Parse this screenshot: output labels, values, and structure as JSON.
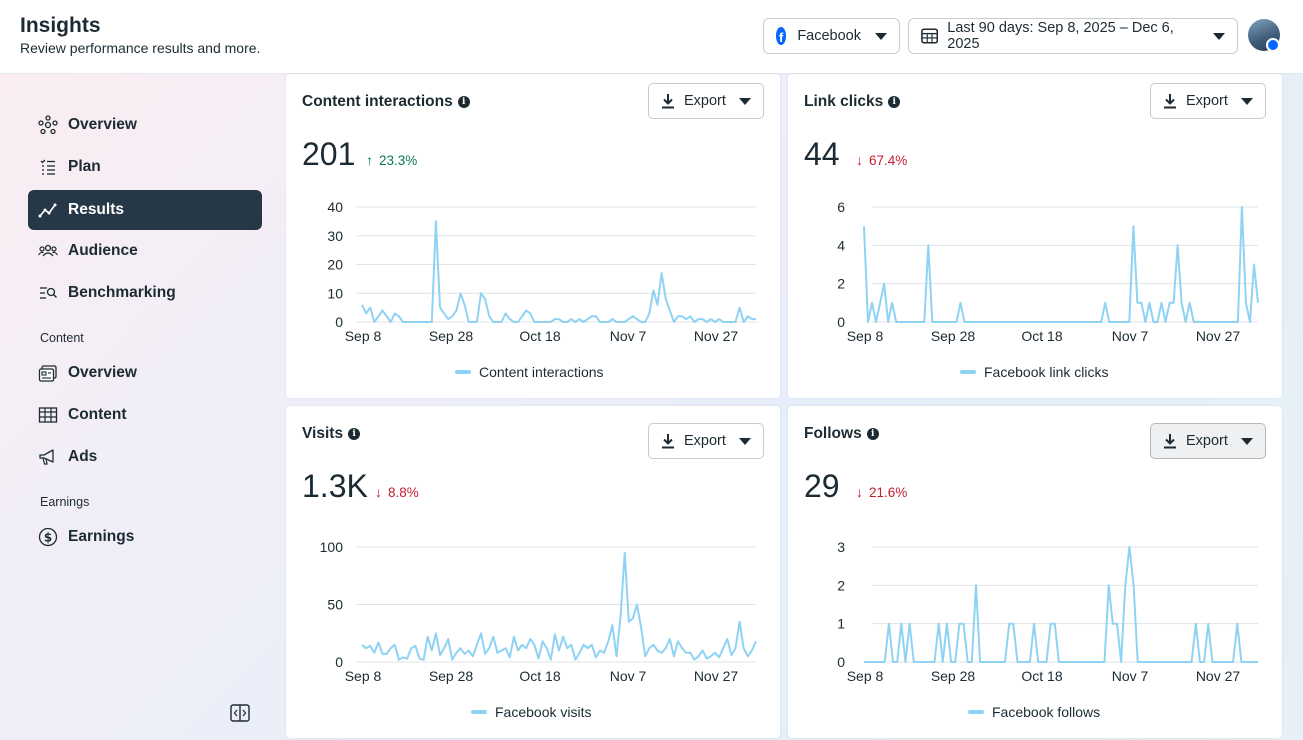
{
  "header": {
    "title": "Insights",
    "subtitle": "Review performance results and more.",
    "platform_label": "Facebook",
    "date_range_label": "Last 90 days: Sep 8, 2025 – Dec 6, 2025"
  },
  "sidebar": {
    "items_top": [
      {
        "label": "Overview",
        "icon": "network-icon"
      },
      {
        "label": "Plan",
        "icon": "list-icon"
      },
      {
        "label": "Results",
        "icon": "trend-icon"
      },
      {
        "label": "Audience",
        "icon": "people-icon"
      },
      {
        "label": "Benchmarking",
        "icon": "compare-icon"
      }
    ],
    "content_section_label": "Content",
    "items_content": [
      {
        "label": "Overview",
        "icon": "content-overview-icon"
      },
      {
        "label": "Content",
        "icon": "table-icon"
      },
      {
        "label": "Ads",
        "icon": "megaphone-icon"
      }
    ],
    "earnings_section_label": "Earnings",
    "items_earnings": [
      {
        "label": "Earnings",
        "icon": "dollar-icon"
      }
    ]
  },
  "cards": [
    {
      "title": "Content interactions",
      "export_label": "Export",
      "value": "201",
      "change": "23.3%",
      "direction": "up",
      "legend": "Content interactions"
    },
    {
      "title": "Link clicks",
      "export_label": "Export",
      "value": "44",
      "change": "67.4%",
      "direction": "down",
      "legend": "Facebook link clicks"
    },
    {
      "title": "Visits",
      "export_label": "Export",
      "value": "1.3K",
      "change": "8.8%",
      "direction": "down",
      "legend": "Facebook visits"
    },
    {
      "title": "Follows",
      "export_label": "Export",
      "value": "29",
      "change": "21.6%",
      "direction": "down",
      "legend": "Facebook follows"
    }
  ],
  "colors": {
    "line": "#8fd3f4",
    "grid": "#dfe3e7",
    "up": "#0b7a4b",
    "down": "#c41d2f",
    "active_nav": "#263847"
  },
  "chart_data": [
    {
      "type": "line",
      "title": "Content interactions",
      "x_tick_labels": [
        "Sep 8",
        "Sep 28",
        "Oct 18",
        "Nov 7",
        "Nov 27"
      ],
      "ylim": [
        0,
        40
      ],
      "y_ticks": [
        0,
        10,
        20,
        30,
        40
      ],
      "series": [
        {
          "name": "Content interactions",
          "values": [
            6,
            3,
            5,
            0,
            2,
            4,
            2,
            0,
            3,
            2,
            0,
            0,
            0,
            0,
            0,
            0,
            0,
            0,
            35,
            5,
            3,
            1,
            2,
            4,
            10,
            6,
            0,
            0,
            0,
            10,
            8,
            2,
            0,
            0,
            0,
            3,
            1,
            0,
            0,
            2,
            4,
            3,
            0,
            0,
            0,
            0,
            0,
            1,
            1,
            0,
            0,
            1,
            0,
            1,
            0,
            1,
            2,
            2,
            0,
            0,
            0,
            1,
            0,
            0,
            0,
            1,
            2,
            1,
            0,
            0,
            3,
            11,
            6,
            17,
            8,
            4,
            0,
            2,
            2,
            1,
            2,
            0,
            1,
            1,
            0,
            1,
            0,
            1,
            0,
            0,
            0,
            0,
            5,
            0,
            2,
            1,
            1
          ]
        }
      ]
    },
    {
      "type": "line",
      "title": "Link clicks",
      "x_tick_labels": [
        "Sep 8",
        "Sep 28",
        "Oct 18",
        "Nov 7",
        "Nov 27"
      ],
      "ylim": [
        0,
        6
      ],
      "y_ticks": [
        0,
        2,
        4,
        6
      ],
      "series": [
        {
          "name": "Facebook link clicks",
          "values": [
            5,
            0,
            1,
            0,
            1,
            2,
            0,
            1,
            0,
            0,
            0,
            0,
            0,
            0,
            0,
            0,
            4,
            0,
            0,
            0,
            0,
            0,
            0,
            0,
            1,
            0,
            0,
            0,
            0,
            0,
            0,
            0,
            0,
            0,
            0,
            0,
            0,
            0,
            0,
            0,
            0,
            0,
            0,
            0,
            0,
            0,
            0,
            0,
            0,
            0,
            0,
            0,
            0,
            0,
            0,
            0,
            0,
            0,
            0,
            0,
            1,
            0,
            0,
            0,
            0,
            0,
            0,
            5,
            1,
            1,
            0,
            1,
            0,
            0,
            1,
            0,
            1,
            1,
            4,
            1,
            0,
            1,
            0,
            0,
            0,
            0,
            0,
            0,
            0,
            0,
            0,
            0,
            0,
            0,
            6,
            1,
            0,
            3,
            1
          ]
        }
      ]
    },
    {
      "type": "line",
      "title": "Visits",
      "x_tick_labels": [
        "Sep 8",
        "Sep 28",
        "Oct 18",
        "Nov 7",
        "Nov 27"
      ],
      "ylim": [
        0,
        100
      ],
      "y_ticks": [
        0,
        50,
        100
      ],
      "series": [
        {
          "name": "Facebook visits",
          "values": [
            15,
            12,
            14,
            8,
            17,
            7,
            7,
            12,
            15,
            2,
            4,
            3,
            12,
            14,
            3,
            2,
            22,
            10,
            25,
            6,
            12,
            20,
            2,
            8,
            12,
            7,
            10,
            5,
            15,
            25,
            7,
            12,
            22,
            8,
            10,
            12,
            4,
            22,
            10,
            15,
            12,
            20,
            15,
            3,
            18,
            12,
            2,
            24,
            10,
            22,
            12,
            15,
            2,
            8,
            15,
            12,
            15,
            4,
            10,
            8,
            18,
            32,
            5,
            40,
            95,
            35,
            38,
            50,
            30,
            5,
            12,
            15,
            10,
            8,
            12,
            20,
            5,
            18,
            12,
            8,
            8,
            2,
            5,
            10,
            3,
            5,
            8,
            4,
            12,
            20,
            6,
            12,
            35,
            12,
            5,
            10,
            18
          ]
        }
      ]
    },
    {
      "type": "line",
      "title": "Follows",
      "x_tick_labels": [
        "Sep 8",
        "Sep 28",
        "Oct 18",
        "Nov 7",
        "Nov 27"
      ],
      "ylim": [
        0,
        3
      ],
      "y_ticks": [
        0,
        1,
        2,
        3
      ],
      "series": [
        {
          "name": "Facebook follows",
          "values": [
            0,
            0,
            0,
            0,
            0,
            0,
            1,
            0,
            0,
            1,
            0,
            1,
            0,
            0,
            0,
            0,
            0,
            0,
            1,
            0,
            1,
            0,
            0,
            1,
            1,
            0,
            0,
            2,
            0,
            0,
            0,
            0,
            0,
            0,
            0,
            1,
            1,
            0,
            0,
            0,
            0,
            1,
            0,
            0,
            0,
            1,
            1,
            0,
            0,
            0,
            0,
            0,
            0,
            0,
            0,
            0,
            0,
            0,
            0,
            2,
            1,
            1,
            0,
            2,
            3,
            2,
            0,
            0,
            0,
            0,
            0,
            0,
            0,
            0,
            0,
            0,
            0,
            0,
            0,
            0,
            1,
            0,
            0,
            1,
            0,
            0,
            0,
            0,
            0,
            0,
            1,
            0,
            0,
            0,
            0,
            0
          ]
        }
      ]
    }
  ]
}
